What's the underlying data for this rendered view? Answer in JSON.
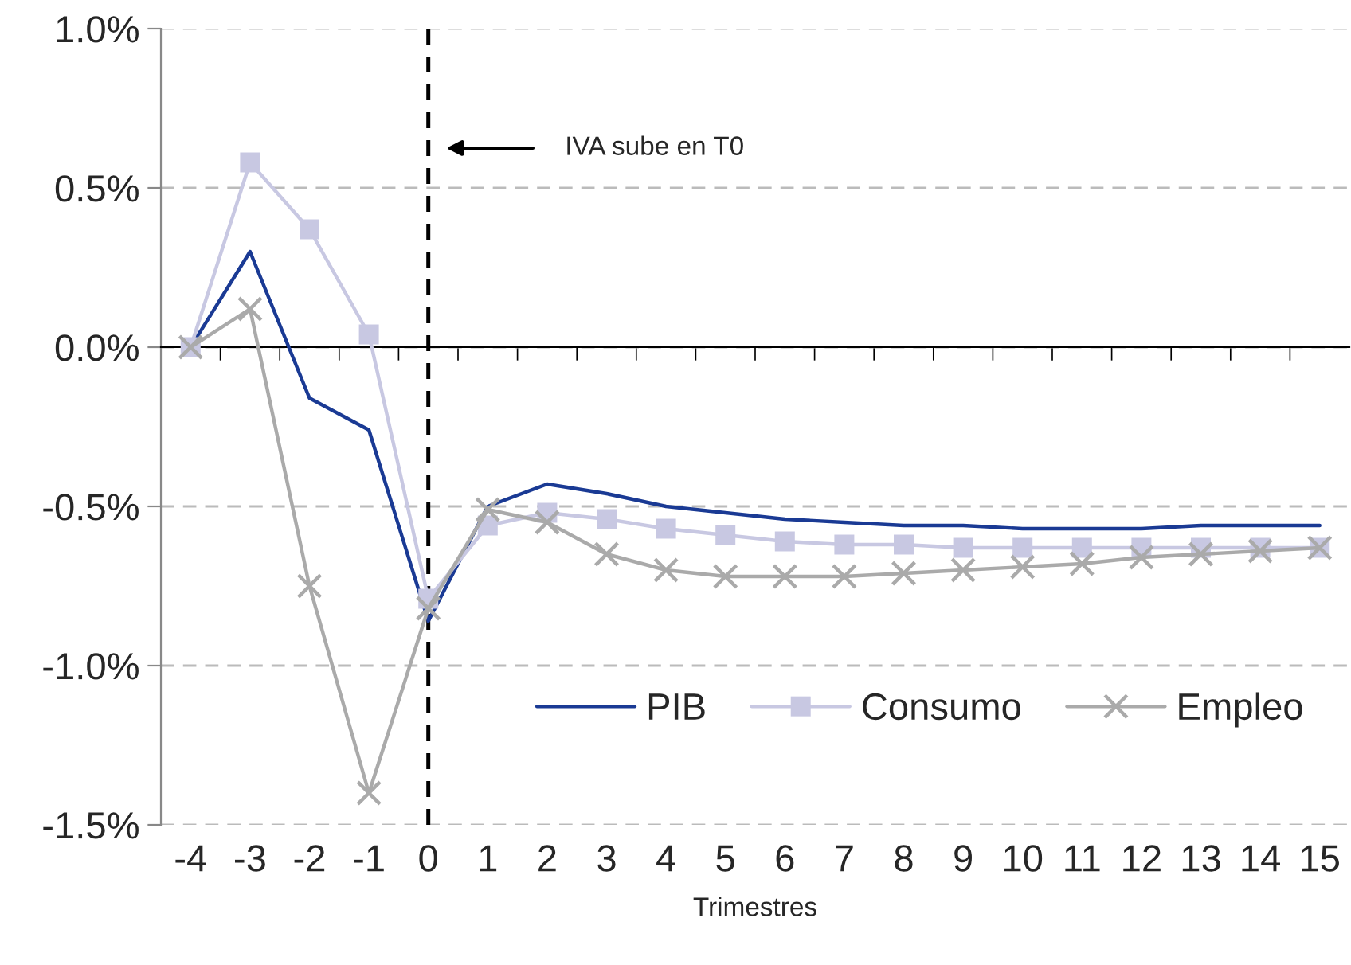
{
  "chart_data": {
    "type": "line",
    "categories": [
      "-4",
      "-3",
      "-2",
      "-1",
      "0",
      "1",
      "2",
      "3",
      "4",
      "5",
      "6",
      "7",
      "8",
      "9",
      "10",
      "11",
      "12",
      "13",
      "14",
      "15"
    ],
    "series": [
      {
        "name": "PIB",
        "color": "#1a3a94",
        "marker": "none",
        "values": [
          0,
          0.3,
          -0.16,
          -0.26,
          -0.86,
          -0.5,
          -0.43,
          -0.46,
          -0.5,
          -0.52,
          -0.54,
          -0.55,
          -0.56,
          -0.56,
          -0.57,
          -0.57,
          -0.57,
          -0.56,
          -0.56,
          -0.56
        ]
      },
      {
        "name": "Consumo",
        "color": "#c8c8e2",
        "marker": "square",
        "values": [
          0,
          0.58,
          0.37,
          0.04,
          -0.79,
          -0.56,
          -0.52,
          -0.54,
          -0.57,
          -0.59,
          -0.61,
          -0.62,
          -0.62,
          -0.63,
          -0.63,
          -0.63,
          -0.63,
          -0.63,
          -0.63,
          -0.63
        ]
      },
      {
        "name": "Empleo",
        "color": "#aaaaaa",
        "marker": "cross",
        "values": [
          0,
          0.12,
          -0.75,
          -1.4,
          -0.82,
          -0.51,
          -0.55,
          -0.65,
          -0.7,
          -0.72,
          -0.72,
          -0.72,
          -0.71,
          -0.7,
          -0.69,
          -0.68,
          -0.66,
          -0.65,
          -0.64,
          -0.63
        ]
      }
    ],
    "xlabel": "Trimestres",
    "ylim": [
      -1.5,
      1.0
    ],
    "yticks": [
      {
        "value": -1.5,
        "label": "-1.5%"
      },
      {
        "value": -1.0,
        "label": "-1.0%"
      },
      {
        "value": -0.5,
        "label": "-0.5%"
      },
      {
        "value": 0,
        "label": "0.0%"
      },
      {
        "value": 0.5,
        "label": "0.5%"
      },
      {
        "value": 1.0,
        "label": "1.0%"
      }
    ],
    "grid": "y",
    "legend": "bottom right",
    "annotations": [
      "IVA sube en T0"
    ],
    "ref_lines": [
      {
        "axis": "x",
        "value": "0",
        "color": "#000000",
        "line_style": "dashed"
      }
    ]
  }
}
